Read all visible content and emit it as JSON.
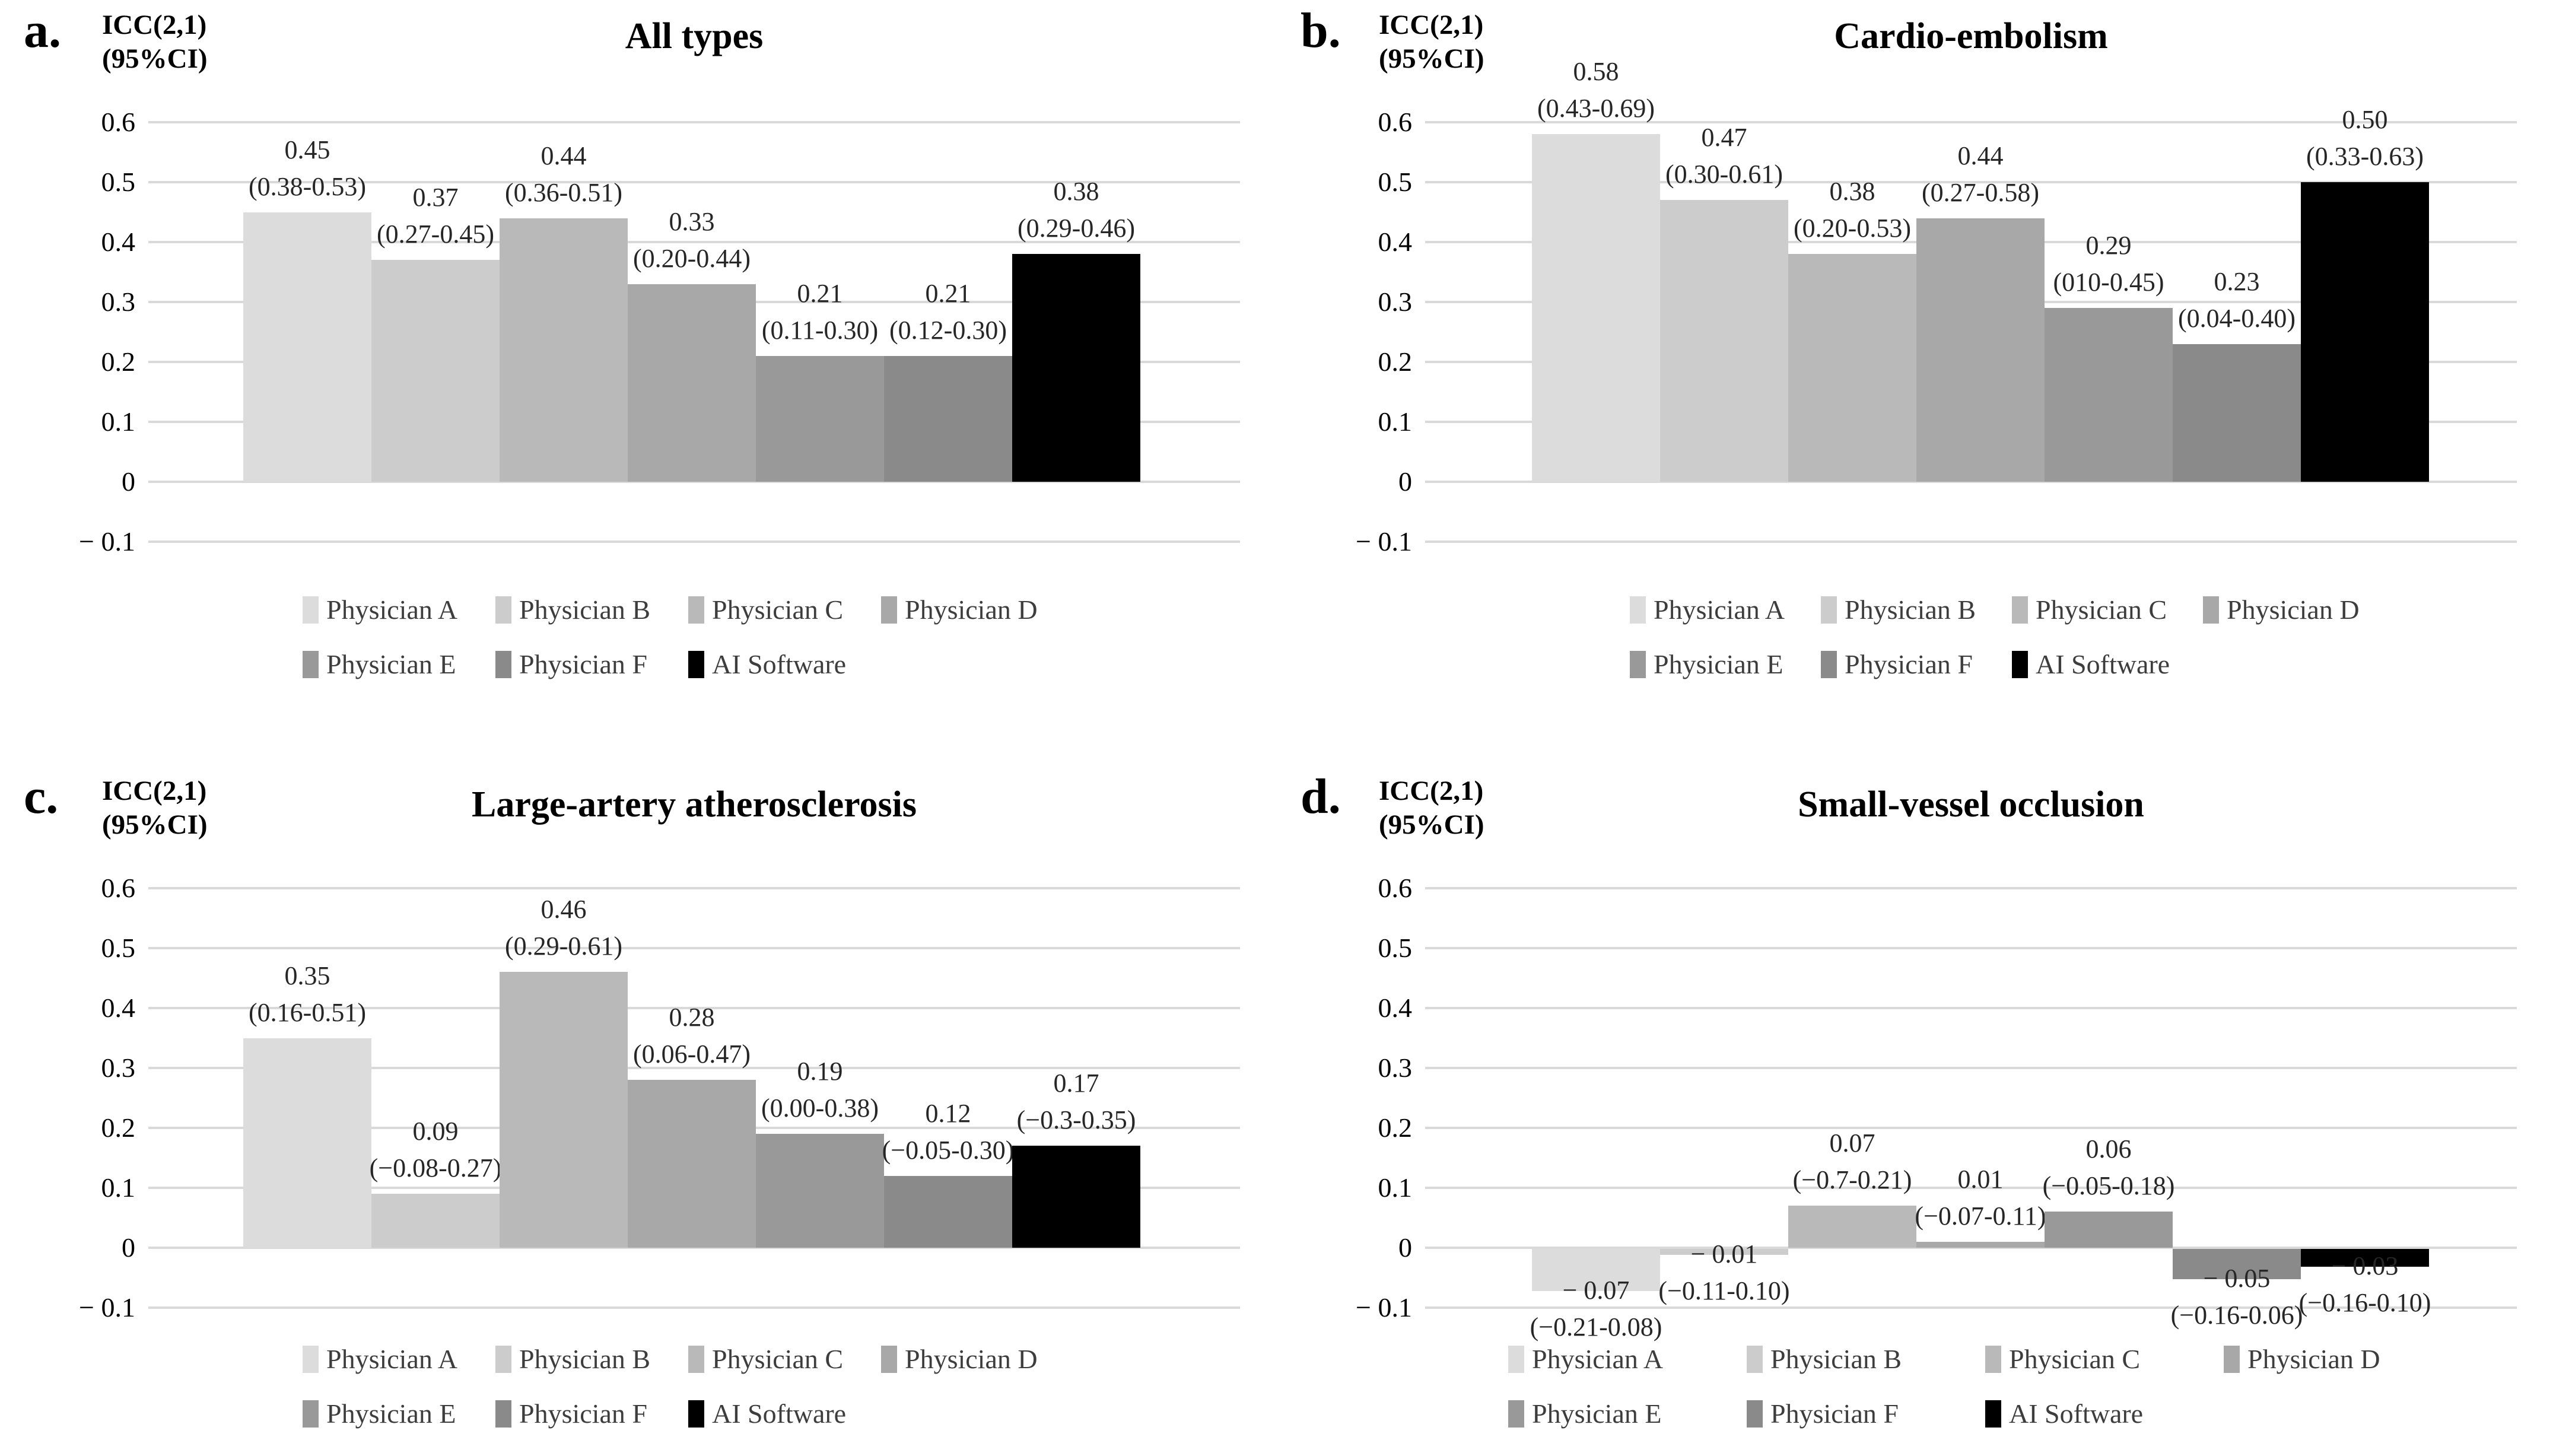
{
  "axis": {
    "label_line1": "ICC(2,1)",
    "label_line2": "(95%CI)",
    "ticks": [
      "0.6",
      "0.5",
      "0.4",
      "0.3",
      "0.2",
      "0.1",
      "0",
      "− 0.1"
    ],
    "tick_values": [
      0.6,
      0.5,
      0.4,
      0.3,
      0.2,
      0.1,
      0,
      -0.1
    ]
  },
  "legend": {
    "items": [
      "Physician A",
      "Physician B",
      "Physician C",
      "Physician D",
      "Physician E",
      "Physician F",
      "AI Software"
    ]
  },
  "colors": {
    "series": [
      "#dcdcdc",
      "#cccccc",
      "#b9b9b9",
      "#a8a8a8",
      "#999999",
      "#8a8a8a",
      "#000000"
    ],
    "gridline": "#d9d9d9",
    "title_text": "#000000",
    "label_text": "#262626",
    "legend_text": "#3d3d3d"
  },
  "chart_data": [
    {
      "type": "bar",
      "id": "a",
      "letter": "a.",
      "title": "All types",
      "ylabel": "ICC(2,1) (95%CI)",
      "ylim": [
        -0.1,
        0.6
      ],
      "grid": true,
      "legend_position": "bottom",
      "categories": [
        "Physician A",
        "Physician B",
        "Physician C",
        "Physician D",
        "Physician E",
        "Physician F",
        "AI Software"
      ],
      "values": [
        0.45,
        0.37,
        0.44,
        0.33,
        0.21,
        0.21,
        0.38
      ],
      "value_labels": [
        "0.45",
        "0.37",
        "0.44",
        "0.33",
        "0.21",
        "0.21",
        "0.38"
      ],
      "ci_labels": [
        "(0.38-0.53)",
        "(0.27-0.45)",
        "(0.36-0.51)",
        "(0.20-0.44)",
        "(0.11-0.30)",
        "(0.12-0.30)",
        "(0.29-0.46)"
      ]
    },
    {
      "type": "bar",
      "id": "b",
      "letter": "b.",
      "title": "Cardio-embolism",
      "ylabel": "ICC(2,1) (95%CI)",
      "ylim": [
        -0.1,
        0.6
      ],
      "grid": true,
      "legend_position": "bottom",
      "categories": [
        "Physician A",
        "Physician B",
        "Physician C",
        "Physician D",
        "Physician E",
        "Physician F",
        "AI Software"
      ],
      "values": [
        0.58,
        0.47,
        0.38,
        0.44,
        0.29,
        0.23,
        0.5
      ],
      "value_labels": [
        "0.58",
        "0.47",
        "0.38",
        "0.44",
        "0.29",
        "0.23",
        "0.50"
      ],
      "ci_labels": [
        "(0.43-0.69)",
        "(0.30-0.61)",
        "(0.20-0.53)",
        "(0.27-0.58)",
        "(010-0.45)",
        "(0.04-0.40)",
        "(0.33-0.63)"
      ]
    },
    {
      "type": "bar",
      "id": "c",
      "letter": "c.",
      "title": "Large-artery atherosclerosis",
      "ylabel": "ICC(2,1) (95%CI)",
      "ylim": [
        -0.1,
        0.6
      ],
      "grid": true,
      "legend_position": "bottom",
      "categories": [
        "Physician A",
        "Physician B",
        "Physician C",
        "Physician D",
        "Physician E",
        "Physician F",
        "AI Software"
      ],
      "values": [
        0.35,
        0.09,
        0.46,
        0.28,
        0.19,
        0.12,
        0.17
      ],
      "value_labels": [
        "0.35",
        "0.09",
        "0.46",
        "0.28",
        "0.19",
        "0.12",
        "0.17"
      ],
      "ci_labels": [
        "(0.16-0.51)",
        "(−0.08-0.27)",
        "(0.29-0.61)",
        "(0.06-0.47)",
        "(0.00-0.38)",
        "(−0.05-0.30)",
        "(−0.3-0.35)"
      ]
    },
    {
      "type": "bar",
      "id": "d",
      "letter": "d.",
      "title": "Small-vessel occlusion",
      "ylabel": "ICC(2,1) (95%CI)",
      "ylim": [
        -0.1,
        0.6
      ],
      "grid": true,
      "legend_position": "bottom",
      "categories": [
        "Physician A",
        "Physician B",
        "Physician C",
        "Physician D",
        "Physician E",
        "Physician F",
        "AI Software"
      ],
      "values": [
        -0.07,
        -0.01,
        0.07,
        0.01,
        0.06,
        -0.05,
        -0.03
      ],
      "value_labels": [
        "− 0.07",
        "− 0.01",
        "0.07",
        "0.01",
        "0.06",
        "− 0.05",
        "− 0.03"
      ],
      "ci_labels": [
        "(−0.21-0.08)",
        "(−0.11-0.10)",
        "(−0.7-0.21)",
        "(−0.07-0.11)",
        "(−0.05-0.18)",
        "(−0.16-0.06)",
        "(−0.16-0.10)"
      ]
    }
  ]
}
